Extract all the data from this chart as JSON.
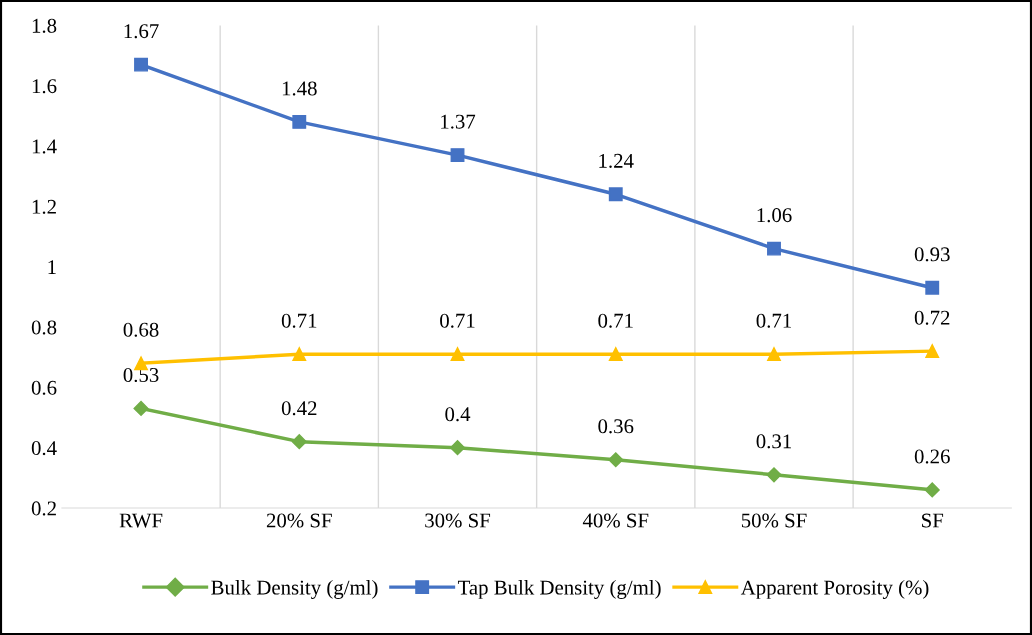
{
  "chart_data": {
    "type": "line",
    "categories": [
      "RWF",
      "20% SF",
      "30% SF",
      "40% SF",
      "50% SF",
      "SF"
    ],
    "series": [
      {
        "name": "Bulk Density (g/ml)",
        "color": "#70ad47",
        "marker": "diamond",
        "values": [
          0.53,
          0.42,
          0.4,
          0.36,
          0.31,
          0.26
        ]
      },
      {
        "name": "Tap Bulk Density (g/ml)",
        "color": "#4472c4",
        "marker": "square",
        "values": [
          1.67,
          1.48,
          1.37,
          1.24,
          1.06,
          0.93
        ]
      },
      {
        "name": "Apparent Porosity (%)",
        "color": "#ffc000",
        "marker": "triangle",
        "values": [
          0.68,
          0.71,
          0.71,
          0.71,
          0.71,
          0.72
        ]
      }
    ],
    "ylim": [
      0.2,
      1.8
    ],
    "yticks": [
      0.2,
      0.4,
      0.6,
      0.8,
      1,
      1.2,
      1.4,
      1.6,
      1.8
    ],
    "grid": "x",
    "legend": "bottom",
    "data_labels": true,
    "line_style": "solid"
  }
}
